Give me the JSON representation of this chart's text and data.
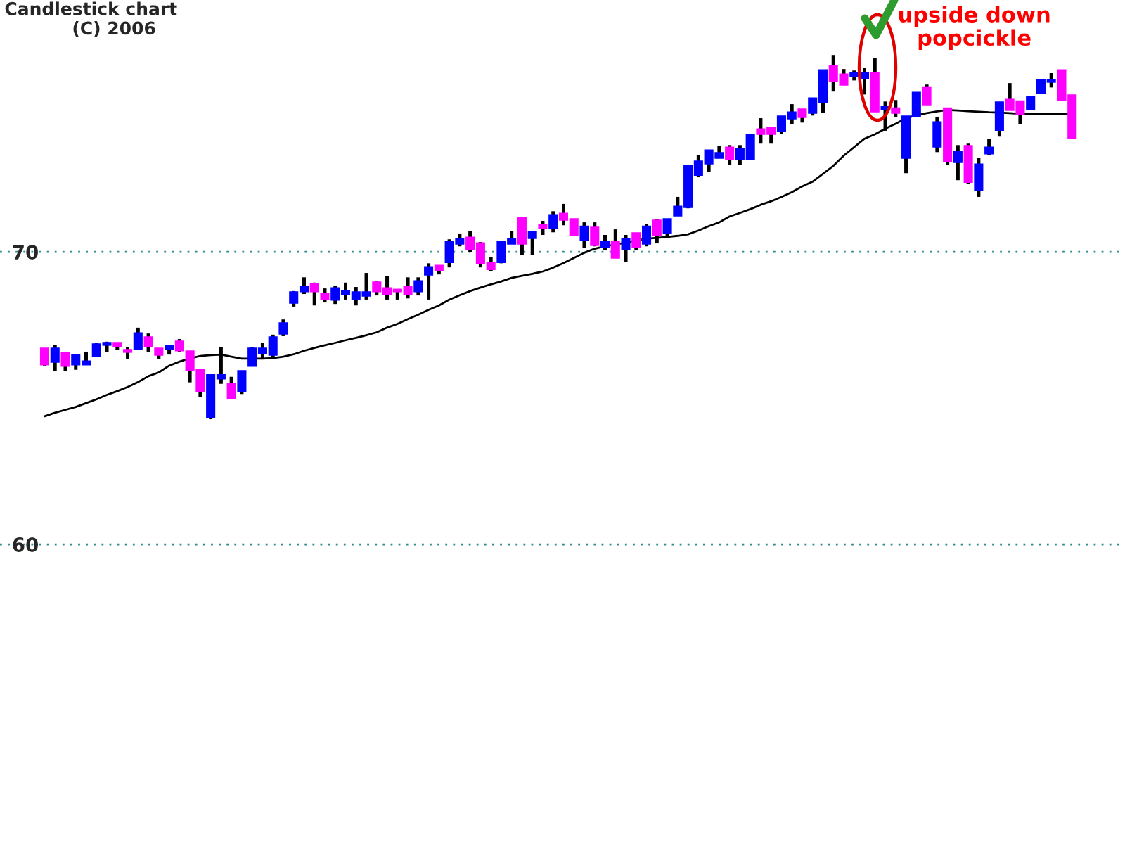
{
  "chart_data": {
    "type": "candlestick",
    "title": "Candlestick chart",
    "subtitle": "(C) 2006",
    "annotations": [
      "upside down\npopcickle"
    ],
    "categories": [
      null,
      null,
      null,
      null,
      null,
      null,
      null,
      null,
      null,
      null,
      null,
      null,
      null,
      null,
      null,
      null,
      null,
      null,
      null,
      null,
      null,
      null,
      null,
      null,
      null,
      null,
      null,
      null,
      null,
      null,
      null,
      null,
      null,
      null,
      null,
      null,
      null,
      null,
      null,
      null,
      null,
      null,
      null,
      null,
      null,
      null,
      null,
      null,
      null,
      null,
      null,
      null,
      null,
      null,
      null,
      null,
      null,
      null,
      null,
      null,
      null,
      null,
      null,
      null,
      null,
      null,
      null,
      null,
      null,
      null,
      null,
      null,
      null,
      null,
      null,
      null,
      null,
      null,
      null,
      null,
      null,
      null,
      null,
      null,
      null,
      null,
      null,
      null,
      null,
      null,
      null,
      null,
      null,
      null,
      null,
      null,
      null,
      null,
      null,
      null
    ],
    "ohlc": [
      [
        66.69,
        66.69,
        66.11,
        66.16
      ],
      [
        66.25,
        66.83,
        65.92,
        66.69
      ],
      [
        66.54,
        66.59,
        65.92,
        66.11
      ],
      [
        66.16,
        66.45,
        65.97,
        66.45
      ],
      [
        66.16,
        66.59,
        66.16,
        66.25
      ],
      [
        66.45,
        66.88,
        66.4,
        66.83
      ],
      [
        66.83,
        66.93,
        66.59,
        66.88
      ],
      [
        66.88,
        66.88,
        66.64,
        66.78
      ],
      [
        66.64,
        66.74,
        66.35,
        66.59
      ],
      [
        66.69,
        67.41,
        66.64,
        67.21
      ],
      [
        67.07,
        67.21,
        66.59,
        66.78
      ],
      [
        66.69,
        66.69,
        66.35,
        66.49
      ],
      [
        66.69,
        66.83,
        66.49,
        66.78
      ],
      [
        66.93,
        67.02,
        66.59,
        66.64
      ],
      [
        66.59,
        66.59,
        65.54,
        65.97
      ],
      [
        65.97,
        65.97,
        65.04,
        65.24
      ],
      [
        64.37,
        65.82,
        64.28,
        65.78
      ],
      [
        65.68,
        66.74,
        65.49,
        65.78
      ],
      [
        65.49,
        65.73,
        65.0,
        65.0
      ],
      [
        65.24,
        65.92,
        65.14,
        65.92
      ],
      [
        66.11,
        66.74,
        66.11,
        66.69
      ],
      [
        66.54,
        66.88,
        66.35,
        66.69
      ],
      [
        66.49,
        67.17,
        66.35,
        67.07
      ],
      [
        67.21,
        67.69,
        67.12,
        67.55
      ],
      [
        68.27,
        68.66,
        68.13,
        68.61
      ],
      [
        68.66,
        69.13,
        68.56,
        68.8
      ],
      [
        68.9,
        68.95,
        68.17,
        68.66
      ],
      [
        68.56,
        68.75,
        68.27,
        68.41
      ],
      [
        68.37,
        68.85,
        68.22,
        68.75
      ],
      [
        68.56,
        68.95,
        68.37,
        68.66
      ],
      [
        68.41,
        68.8,
        68.17,
        68.61
      ],
      [
        68.51,
        69.28,
        68.37,
        68.61
      ],
      [
        68.95,
        68.99,
        68.51,
        68.66
      ],
      [
        68.75,
        69.18,
        68.37,
        68.56
      ],
      [
        68.7,
        68.7,
        68.37,
        68.66
      ],
      [
        68.8,
        69.13,
        68.41,
        68.56
      ],
      [
        68.66,
        69.13,
        68.51,
        68.99
      ],
      [
        69.23,
        69.61,
        68.37,
        69.47
      ],
      [
        69.52,
        69.52,
        69.23,
        69.38
      ],
      [
        69.66,
        70.43,
        69.47,
        70.34
      ],
      [
        70.29,
        70.63,
        70.19,
        70.43
      ],
      [
        70.48,
        70.72,
        70.0,
        70.1
      ],
      [
        70.29,
        70.34,
        69.47,
        69.61
      ],
      [
        69.61,
        69.81,
        69.33,
        69.42
      ],
      [
        69.66,
        70.34,
        69.61,
        70.34
      ],
      [
        70.29,
        70.72,
        70.29,
        70.43
      ],
      [
        71.15,
        71.15,
        69.9,
        70.29
      ],
      [
        70.48,
        70.67,
        69.9,
        70.67
      ],
      [
        70.91,
        71.06,
        70.58,
        70.82
      ],
      [
        70.82,
        71.39,
        70.67,
        71.25
      ],
      [
        71.3,
        71.64,
        70.91,
        71.11
      ],
      [
        71.11,
        71.11,
        70.58,
        70.58
      ],
      [
        70.43,
        71.01,
        70.14,
        70.86
      ],
      [
        70.82,
        71.01,
        70.19,
        70.24
      ],
      [
        70.19,
        70.58,
        70.05,
        70.34
      ],
      [
        70.34,
        70.77,
        69.81,
        69.81
      ],
      [
        70.1,
        70.58,
        69.66,
        70.43
      ],
      [
        70.63,
        70.63,
        70.05,
        70.19
      ],
      [
        70.29,
        70.96,
        70.19,
        70.86
      ],
      [
        71.06,
        71.11,
        70.29,
        70.58
      ],
      [
        70.67,
        71.11,
        70.53,
        71.11
      ],
      [
        71.25,
        71.88,
        71.25,
        71.54
      ],
      [
        71.54,
        72.93,
        71.49,
        72.93
      ],
      [
        72.64,
        73.32,
        72.55,
        73.08
      ],
      [
        73.03,
        73.46,
        72.74,
        73.46
      ],
      [
        73.22,
        73.61,
        73.22,
        73.37
      ],
      [
        73.56,
        73.65,
        72.98,
        73.17
      ],
      [
        73.17,
        73.65,
        72.98,
        73.51
      ],
      [
        73.17,
        73.99,
        73.17,
        73.99
      ],
      [
        74.18,
        74.57,
        73.7,
        74.04
      ],
      [
        74.23,
        74.23,
        73.7,
        74.04
      ],
      [
        74.14,
        74.62,
        74.04,
        74.62
      ],
      [
        74.57,
        75.05,
        74.37,
        74.76
      ],
      [
        74.86,
        74.86,
        74.42,
        74.62
      ],
      [
        74.76,
        75.24,
        74.66,
        75.24
      ],
      [
        75.14,
        76.2,
        74.76,
        76.2
      ],
      [
        76.35,
        76.73,
        75.48,
        75.86
      ],
      [
        76.06,
        76.25,
        75.72,
        75.72
      ],
      [
        76.01,
        76.2,
        75.86,
        76.11
      ],
      [
        75.96,
        76.3,
        75.38,
        76.11
      ],
      [
        76.11,
        76.63,
        74.81,
        74.81
      ],
      [
        74.9,
        75.14,
        74.14,
        74.95
      ],
      [
        74.9,
        75.19,
        74.62,
        74.76
      ],
      [
        73.22,
        74.62,
        72.69,
        74.62
      ],
      [
        74.66,
        75.43,
        74.66,
        75.43
      ],
      [
        75.62,
        75.72,
        75.05,
        75.05
      ],
      [
        73.61,
        74.62,
        73.41,
        74.42
      ],
      [
        74.9,
        74.9,
        72.98,
        73.12
      ],
      [
        73.08,
        73.65,
        72.45,
        73.41
      ],
      [
        73.61,
        73.7,
        72.31,
        72.4
      ],
      [
        72.12,
        73.22,
        71.88,
        72.98
      ],
      [
        73.37,
        73.85,
        73.32,
        73.56
      ],
      [
        74.18,
        75.1,
        73.94,
        75.1
      ],
      [
        75.19,
        75.77,
        74.86,
        74.86
      ],
      [
        75.14,
        75.14,
        74.37,
        74.71
      ],
      [
        74.9,
        75.29,
        74.9,
        75.29
      ],
      [
        75.43,
        75.86,
        75.43,
        75.86
      ],
      [
        75.82,
        76.11,
        75.62,
        75.86
      ],
      [
        76.2,
        76.2,
        75.19,
        75.19
      ],
      [
        75.34,
        75.34,
        73.89,
        73.89
      ]
    ],
    "colors": [
      "#ff00ff",
      "#0000ff",
      "#ff00ff",
      "#0000ff",
      "#0000ff",
      "#0000ff",
      "#0000ff",
      "#ff00ff",
      "#ff00ff",
      "#0000ff",
      "#ff00ff",
      "#ff00ff",
      "#0000ff",
      "#ff00ff",
      "#ff00ff",
      "#ff00ff",
      "#0000ff",
      "#0000ff",
      "#ff00ff",
      "#0000ff",
      "#0000ff",
      "#0000ff",
      "#0000ff",
      "#0000ff",
      "#0000ff",
      "#0000ff",
      "#ff00ff",
      "#ff00ff",
      "#0000ff",
      "#0000ff",
      "#0000ff",
      "#0000ff",
      "#ff00ff",
      "#ff00ff",
      "#ff00ff",
      "#ff00ff",
      "#0000ff",
      "#0000ff",
      "#ff00ff",
      "#0000ff",
      "#0000ff",
      "#ff00ff",
      "#ff00ff",
      "#ff00ff",
      "#0000ff",
      "#0000ff",
      "#ff00ff",
      "#0000ff",
      "#ff00ff",
      "#0000ff",
      "#ff00ff",
      "#ff00ff",
      "#0000ff",
      "#ff00ff",
      "#0000ff",
      "#ff00ff",
      "#0000ff",
      "#ff00ff",
      "#0000ff",
      "#ff00ff",
      "#0000ff",
      "#0000ff",
      "#0000ff",
      "#0000ff",
      "#0000ff",
      "#0000ff",
      "#ff00ff",
      "#0000ff",
      "#0000ff",
      "#ff00ff",
      "#ff00ff",
      "#0000ff",
      "#0000ff",
      "#ff00ff",
      "#0000ff",
      "#0000ff",
      "#ff00ff",
      "#ff00ff",
      "#0000ff",
      "#0000ff",
      "#ff00ff",
      "#0000ff",
      "#ff00ff",
      "#0000ff",
      "#0000ff",
      "#ff00ff",
      "#0000ff",
      "#ff00ff",
      "#0000ff",
      "#ff00ff",
      "#0000ff",
      "#0000ff",
      "#0000ff",
      "#ff00ff",
      "#ff00ff",
      "#0000ff",
      "#0000ff",
      "#0000ff",
      "#ff00ff",
      "#ff00ff"
    ],
    "series": [
      {
        "type": "line",
        "color": "#000000",
        "values": [
          64.38,
          64.5,
          64.6,
          64.7,
          64.83,
          64.96,
          65.11,
          65.24,
          65.38,
          65.55,
          65.75,
          65.88,
          66.11,
          66.25,
          66.36,
          66.44,
          66.47,
          66.49,
          66.42,
          66.35,
          66.35,
          66.35,
          66.37,
          66.42,
          66.5,
          66.62,
          66.72,
          66.81,
          66.89,
          66.98,
          67.06,
          67.15,
          67.25,
          67.41,
          67.54,
          67.7,
          67.85,
          68.02,
          68.17,
          68.37,
          68.52,
          68.66,
          68.78,
          68.89,
          68.99,
          69.11,
          69.18,
          69.25,
          69.33,
          69.46,
          69.62,
          69.79,
          69.97,
          70.11,
          70.19,
          70.25,
          70.32,
          70.39,
          70.45,
          70.48,
          70.51,
          70.55,
          70.6,
          70.73,
          70.88,
          71.01,
          71.21,
          71.33,
          71.46,
          71.61,
          71.73,
          71.88,
          72.04,
          72.24,
          72.4,
          72.67,
          72.94,
          73.29,
          73.58,
          73.87,
          74.02,
          74.21,
          74.38,
          74.57,
          74.67,
          74.74,
          74.8,
          74.85,
          74.83,
          74.81,
          74.79,
          74.77,
          74.76,
          74.74,
          74.72,
          74.71,
          74.71,
          74.71,
          74.71,
          74.71
        ]
      }
    ],
    "ylim": [
      49.76,
      78.61
    ],
    "yticks": [
      60,
      70
    ],
    "grid": "y",
    "tick_labels": "y"
  }
}
